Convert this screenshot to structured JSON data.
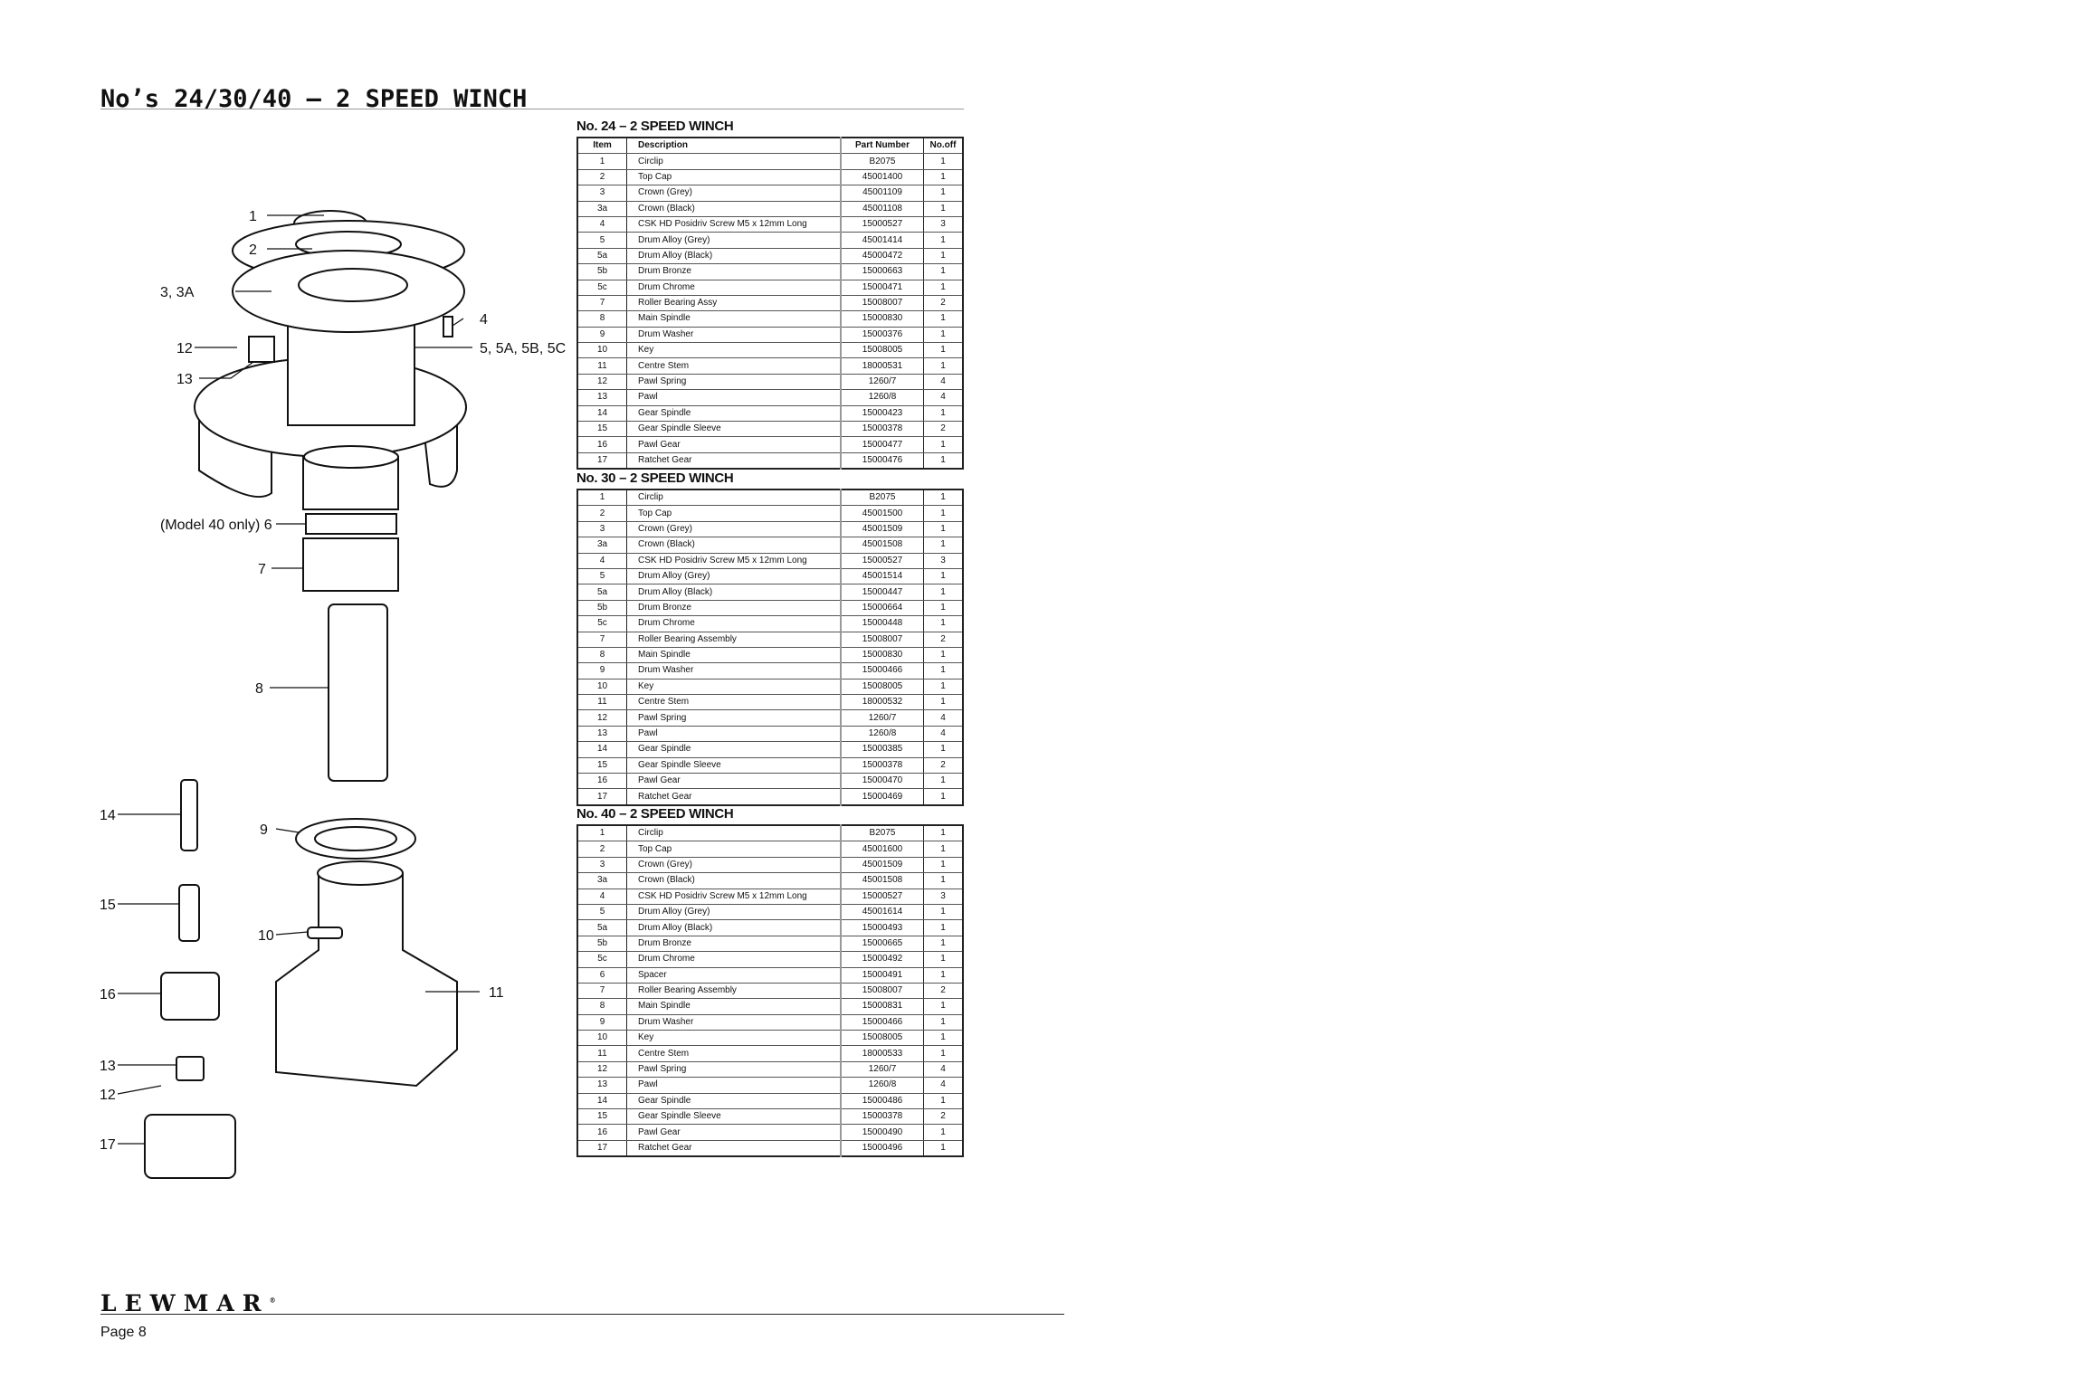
{
  "header": {
    "title": "No’s 24/30/40 – 2 SPEED WINCH"
  },
  "columns": {
    "item": "Item",
    "description": "Description",
    "part_number": "Part Number",
    "no_off": "No.off"
  },
  "tables": [
    {
      "title": "No. 24 – 2 SPEED WINCH",
      "rows": [
        [
          "1",
          "Circlip",
          "B2075",
          "1"
        ],
        [
          "2",
          "Top Cap",
          "45001400",
          "1"
        ],
        [
          "3",
          "Crown (Grey)",
          "45001109",
          "1"
        ],
        [
          "3a",
          "Crown (Black)",
          "45001108",
          "1"
        ],
        [
          "4",
          "CSK HD Posidriv Screw M5 x 12mm Long",
          "15000527",
          "3"
        ],
        [
          "5",
          "Drum Alloy (Grey)",
          "45001414",
          "1"
        ],
        [
          "5a",
          "Drum Alloy (Black)",
          "45000472",
          "1"
        ],
        [
          "5b",
          "Drum Bronze",
          "15000663",
          "1"
        ],
        [
          "5c",
          "Drum Chrome",
          "15000471",
          "1"
        ],
        [
          "7",
          "Roller Bearing Assy",
          "15008007",
          "2"
        ],
        [
          "8",
          "Main Spindle",
          "15000830",
          "1"
        ],
        [
          "9",
          "Drum Washer",
          "15000376",
          "1"
        ],
        [
          "10",
          "Key",
          "15008005",
          "1"
        ],
        [
          "11",
          "Centre Stem",
          "18000531",
          "1"
        ],
        [
          "12",
          "Pawl Spring",
          "1260/7",
          "4"
        ],
        [
          "13",
          "Pawl",
          "1260/8",
          "4"
        ],
        [
          "14",
          "Gear Spindle",
          "15000423",
          "1"
        ],
        [
          "15",
          "Gear Spindle Sleeve",
          "15000378",
          "2"
        ],
        [
          "16",
          "Pawl Gear",
          "15000477",
          "1"
        ],
        [
          "17",
          "Ratchet Gear",
          "15000476",
          "1"
        ]
      ]
    },
    {
      "title": "No. 30 – 2 SPEED WINCH",
      "rows": [
        [
          "1",
          "Circlip",
          "B2075",
          "1"
        ],
        [
          "2",
          "Top Cap",
          "45001500",
          "1"
        ],
        [
          "3",
          "Crown (Grey)",
          "45001509",
          "1"
        ],
        [
          "3a",
          "Crown (Black)",
          "45001508",
          "1"
        ],
        [
          "4",
          "CSK HD Posidriv Screw M5 x 12mm Long",
          "15000527",
          "3"
        ],
        [
          "5",
          "Drum Alloy (Grey)",
          "45001514",
          "1"
        ],
        [
          "5a",
          "Drum Alloy (Black)",
          "15000447",
          "1"
        ],
        [
          "5b",
          "Drum Bronze",
          "15000664",
          "1"
        ],
        [
          "5c",
          "Drum Chrome",
          "15000448",
          "1"
        ],
        [
          "7",
          "Roller Bearing Assembly",
          "15008007",
          "2"
        ],
        [
          "8",
          "Main Spindle",
          "15000830",
          "1"
        ],
        [
          "9",
          "Drum Washer",
          "15000466",
          "1"
        ],
        [
          "10",
          "Key",
          "15008005",
          "1"
        ],
        [
          "11",
          "Centre Stem",
          "18000532",
          "1"
        ],
        [
          "12",
          "Pawl Spring",
          "1260/7",
          "4"
        ],
        [
          "13",
          "Pawl",
          "1260/8",
          "4"
        ],
        [
          "14",
          "Gear Spindle",
          "15000385",
          "1"
        ],
        [
          "15",
          "Gear Spindle Sleeve",
          "15000378",
          "2"
        ],
        [
          "16",
          "Pawl Gear",
          "15000470",
          "1"
        ],
        [
          "17",
          "Ratchet Gear",
          "15000469",
          "1"
        ]
      ]
    },
    {
      "title": "No. 40 – 2 SPEED WINCH",
      "rows": [
        [
          "1",
          "Circlip",
          "B2075",
          "1"
        ],
        [
          "2",
          "Top Cap",
          "45001600",
          "1"
        ],
        [
          "3",
          "Crown (Grey)",
          "45001509",
          "1"
        ],
        [
          "3a",
          "Crown (Black)",
          "45001508",
          "1"
        ],
        [
          "4",
          "CSK HD Posidriv Screw M5 x 12mm Long",
          "15000527",
          "3"
        ],
        [
          "5",
          "Drum Alloy (Grey)",
          "45001614",
          "1"
        ],
        [
          "5a",
          "Drum Alloy (Black)",
          "15000493",
          "1"
        ],
        [
          "5b",
          "Drum Bronze",
          "15000665",
          "1"
        ],
        [
          "5c",
          "Drum Chrome",
          "15000492",
          "1"
        ],
        [
          "6",
          "Spacer",
          "15000491",
          "1"
        ],
        [
          "7",
          "Roller Bearing Assembly",
          "15008007",
          "2"
        ],
        [
          "8",
          "Main Spindle",
          "15000831",
          "1"
        ],
        [
          "9",
          "Drum Washer",
          "15000466",
          "1"
        ],
        [
          "10",
          "Key",
          "15008005",
          "1"
        ],
        [
          "11",
          "Centre Stem",
          "18000533",
          "1"
        ],
        [
          "12",
          "Pawl Spring",
          "1260/7",
          "4"
        ],
        [
          "13",
          "Pawl",
          "1260/8",
          "4"
        ],
        [
          "14",
          "Gear Spindle",
          "15000486",
          "1"
        ],
        [
          "15",
          "Gear Spindle Sleeve",
          "15000378",
          "2"
        ],
        [
          "16",
          "Pawl Gear",
          "15000490",
          "1"
        ],
        [
          "17",
          "Ratchet Gear",
          "15000496",
          "1"
        ]
      ]
    }
  ],
  "diagram_labels": {
    "l1": "1",
    "l2": "2",
    "l3": "3, 3A",
    "l12a": "12",
    "l13a": "13",
    "l4": "4",
    "l5": "5, 5A, 5B, 5C",
    "l6": "(Model 40 only)  6",
    "l7": "7",
    "l8": "8",
    "l14": "14",
    "l9": "9",
    "l15": "15",
    "l10": "10",
    "l16": "16",
    "l11": "11",
    "l13b": "13",
    "l12b": "12",
    "l17": "17"
  },
  "footer": {
    "logo": "LEWMAR",
    "page": "Page 8"
  }
}
